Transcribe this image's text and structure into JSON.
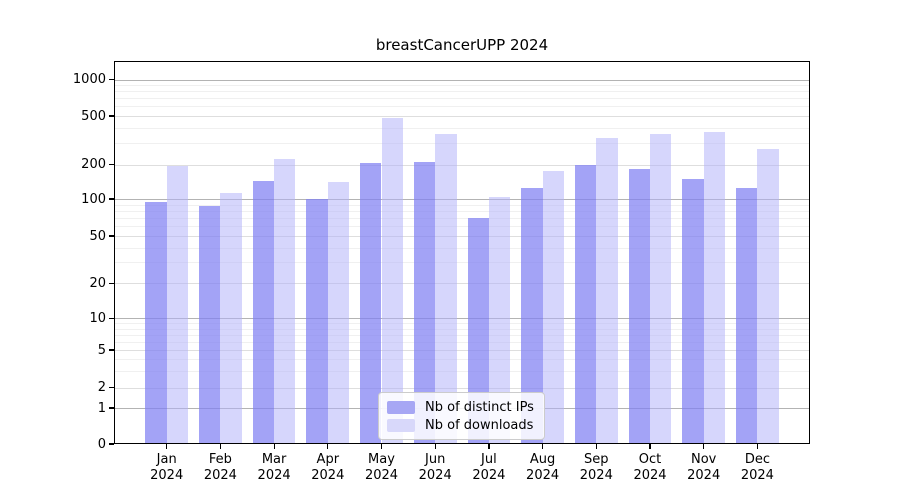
{
  "figure": {
    "title": "breastCancerUPP 2024"
  },
  "chart_data": {
    "type": "bar",
    "title": "breastCancerUPP 2024",
    "subtitle": "",
    "year": "2024",
    "categories": [
      "Jan",
      "Feb",
      "Mar",
      "Apr",
      "May",
      "Jun",
      "Jul",
      "Aug",
      "Sep",
      "Oct",
      "Nov",
      "Dec"
    ],
    "series": [
      {
        "name": "Nb of distinct IPs",
        "key": "distinct-ips",
        "color": "#a7a7f4",
        "fill": "rgba(128,128,242,0.72)",
        "values": [
          95,
          88,
          143,
          100,
          205,
          208,
          70,
          125,
          198,
          184,
          148,
          125
        ]
      },
      {
        "name": "Nb of downloads",
        "key": "downloads",
        "color": "#d8d8fa",
        "fill": "rgba(177,177,249,0.52)",
        "values": [
          193,
          112,
          224,
          142,
          483,
          355,
          104,
          175,
          330,
          357,
          369,
          270
        ]
      }
    ],
    "xlabel": "",
    "ylabel": "",
    "yscale": "symlog",
    "ylim": [
      0,
      1400
    ],
    "yticks": [
      0,
      1,
      2,
      5,
      10,
      20,
      50,
      100,
      200,
      500,
      1000
    ],
    "minor_gridlines": [
      3,
      4,
      6,
      7,
      8,
      9,
      30,
      40,
      60,
      70,
      80,
      90,
      300,
      400,
      600,
      700,
      800,
      900
    ],
    "grid": true,
    "legend_position": "lower center"
  }
}
